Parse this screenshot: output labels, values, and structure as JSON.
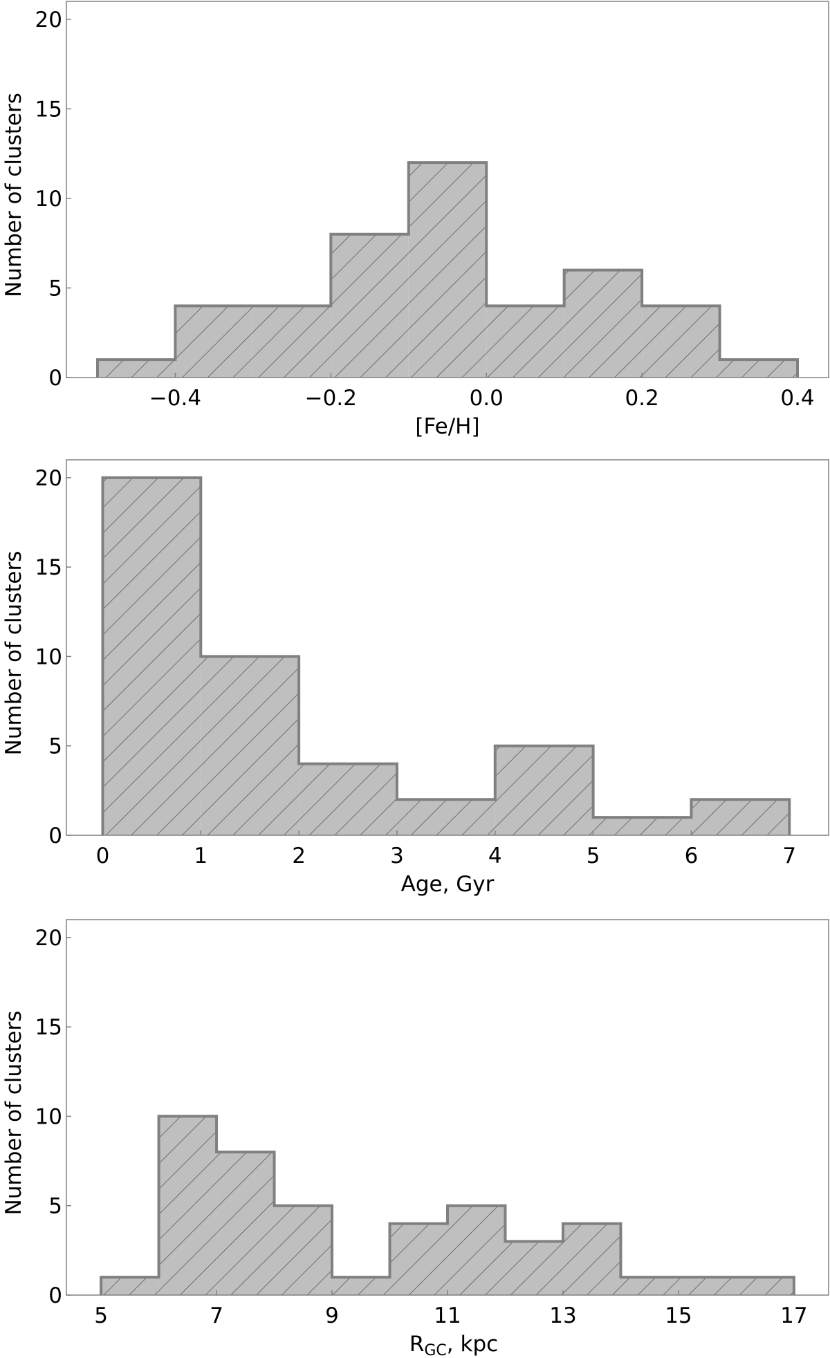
{
  "colors": {
    "bar_fill": "#bfbfbf",
    "bar_edge": "#808080",
    "hatch": "#4d4d4d",
    "axis": "#808080"
  },
  "chart_data": [
    {
      "type": "bar",
      "xlabel": "[Fe/H]",
      "ylabel": "Number of clusters",
      "bin_edges": [
        -0.5,
        -0.4,
        -0.3,
        -0.2,
        -0.1,
        0.0,
        0.1,
        0.2,
        0.3,
        0.4
      ],
      "values": [
        1,
        4,
        4,
        8,
        12,
        4,
        6,
        4,
        1
      ],
      "xlim": [
        -0.54,
        0.44
      ],
      "ylim": [
        0,
        21
      ],
      "xticks": [
        -0.4,
        -0.2,
        0.0,
        0.2,
        0.4
      ],
      "xtick_labels": [
        "−0.4",
        "−0.2",
        "0.0",
        "0.2",
        "0.4"
      ],
      "yticks": [
        0,
        5,
        10,
        15,
        20
      ],
      "ytick_labels": [
        "0",
        "5",
        "10",
        "15",
        "20"
      ],
      "grid": false,
      "hatch": "diagonal"
    },
    {
      "type": "bar",
      "xlabel": "Age, Gyr",
      "ylabel": "Number of clusters",
      "bin_edges": [
        0,
        1,
        2,
        3,
        4,
        5,
        6,
        7
      ],
      "values": [
        20,
        10,
        4,
        2,
        5,
        1,
        2
      ],
      "xlim": [
        -0.37,
        7.4
      ],
      "ylim": [
        0,
        21
      ],
      "xticks": [
        0,
        1,
        2,
        3,
        4,
        5,
        6,
        7
      ],
      "xtick_labels": [
        "0",
        "1",
        "2",
        "3",
        "4",
        "5",
        "6",
        "7"
      ],
      "yticks": [
        0,
        5,
        10,
        15,
        20
      ],
      "ytick_labels": [
        "0",
        "5",
        "10",
        "15",
        "20"
      ],
      "grid": false,
      "hatch": "diagonal"
    },
    {
      "type": "bar",
      "xlabel": "R",
      "xlabel_sub": "GC",
      "xlabel_suffix": ", kpc",
      "ylabel": "Number of clusters",
      "bin_edges": [
        5,
        6,
        7,
        8,
        9,
        10,
        11,
        12,
        13,
        14,
        15,
        16,
        17
      ],
      "values": [
        1,
        10,
        8,
        5,
        1,
        4,
        5,
        3,
        4,
        1,
        1,
        1
      ],
      "xlim": [
        4.4,
        17.6
      ],
      "ylim": [
        0,
        21
      ],
      "xticks": [
        5,
        7,
        9,
        11,
        13,
        15,
        17
      ],
      "xtick_labels": [
        "5",
        "7",
        "9",
        "11",
        "13",
        "15",
        "17"
      ],
      "yticks": [
        0,
        5,
        10,
        15,
        20
      ],
      "ytick_labels": [
        "0",
        "5",
        "10",
        "15",
        "20"
      ],
      "grid": false,
      "hatch": "diagonal"
    }
  ]
}
